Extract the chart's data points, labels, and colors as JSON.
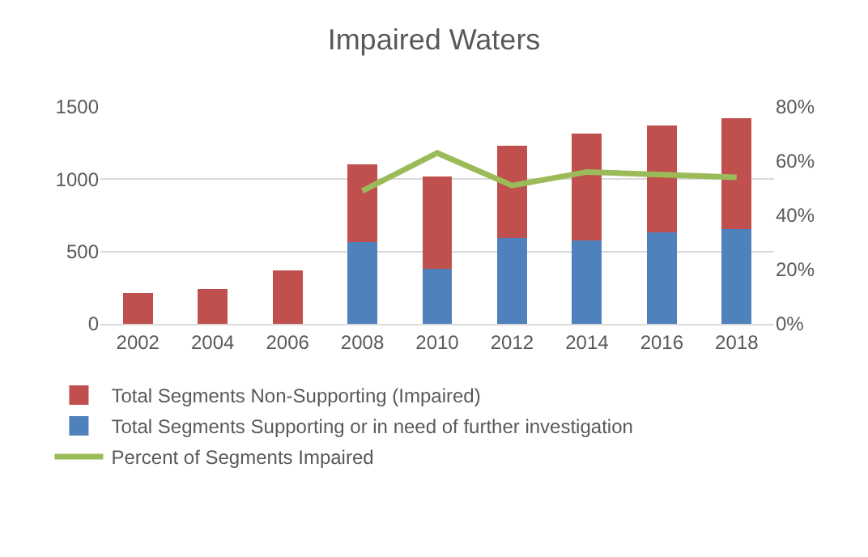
{
  "chart_data": {
    "type": "bar",
    "title": "Impaired Waters",
    "stacked": true,
    "categories": [
      "2002",
      "2004",
      "2006",
      "2008",
      "2010",
      "2012",
      "2014",
      "2016",
      "2018"
    ],
    "series": [
      {
        "name": "Total Segments Supporting or in need of further investigation",
        "color": "#4f81bd",
        "values": [
          0,
          0,
          0,
          564,
          383,
          596,
          576,
          633,
          657
        ]
      },
      {
        "name": "Total Segments Non-Supporting (Impaired)",
        "color": "#c0504d",
        "values": [
          210,
          242,
          371,
          540,
          637,
          637,
          742,
          741,
          766
        ]
      },
      {
        "name": "Percent of Segments Impaired",
        "type": "line",
        "axis": "y2",
        "color": "#9bbb59",
        "values": [
          null,
          null,
          null,
          49,
          63,
          51,
          56,
          55,
          54
        ]
      }
    ],
    "ylim": [
      0,
      1500
    ],
    "yticks": [
      0,
      500,
      1000,
      1500
    ],
    "y2lim": [
      0,
      80
    ],
    "y2ticks": [
      {
        "value": 0,
        "label": "0%"
      },
      {
        "value": 20,
        "label": "20%"
      },
      {
        "value": 40,
        "label": "40%"
      },
      {
        "value": 60,
        "label": "60%"
      },
      {
        "value": 80,
        "label": "80%"
      }
    ],
    "grid": "y",
    "legend": "bottom",
    "marker": "none"
  }
}
